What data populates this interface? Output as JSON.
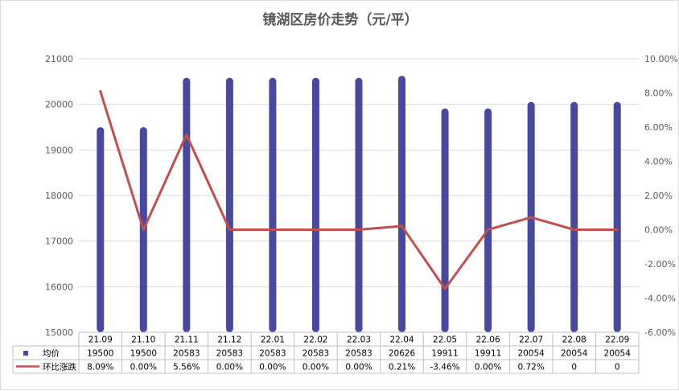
{
  "chart_data": {
    "type": "bar",
    "title": "镜湖区房价走势（元/平）",
    "categories": [
      "21.09",
      "21.10",
      "21.11",
      "21.12",
      "22.01",
      "22.02",
      "22.03",
      "22.04",
      "22.05",
      "22.06",
      "22.07",
      "22.08",
      "22.09"
    ],
    "series": [
      {
        "name": "均价",
        "type": "bar",
        "axis": "left",
        "color": "#4848a0",
        "values": [
          19500,
          19500,
          20583,
          20583,
          20583,
          20583,
          20583,
          20626,
          19911,
          19911,
          20054,
          20054,
          20054
        ],
        "labels": [
          "19500",
          "19500",
          "20583",
          "20583",
          "20583",
          "20583",
          "20583",
          "20626",
          "19911",
          "19911",
          "20054",
          "20054",
          "20054"
        ]
      },
      {
        "name": "环比涨跌",
        "type": "line",
        "axis": "right",
        "color": "#c0504d",
        "values": [
          8.09,
          0.0,
          5.56,
          0.0,
          0.0,
          0.0,
          0.0,
          0.21,
          -3.46,
          0.0,
          0.72,
          0,
          0
        ],
        "labels": [
          "8.09%",
          "0.00%",
          "5.56%",
          "0.00%",
          "0.00%",
          "0.00%",
          "0.00%",
          "0.21%",
          "-3.46%",
          "0.00%",
          "0.72%",
          "0",
          "0"
        ]
      }
    ],
    "y_left": {
      "ylim": [
        15000,
        21000
      ],
      "ticks": [
        "21000",
        "20000",
        "19000",
        "18000",
        "17000",
        "16000",
        "15000"
      ]
    },
    "y_right": {
      "ylim": [
        -6,
        10
      ],
      "ticks": [
        "10.00%",
        "8.00%",
        "6.00%",
        "4.00%",
        "2.00%",
        "0.00%",
        "-2.00%",
        "-4.00%",
        "-6.00%"
      ]
    },
    "grid": true,
    "legend": "data-table"
  }
}
